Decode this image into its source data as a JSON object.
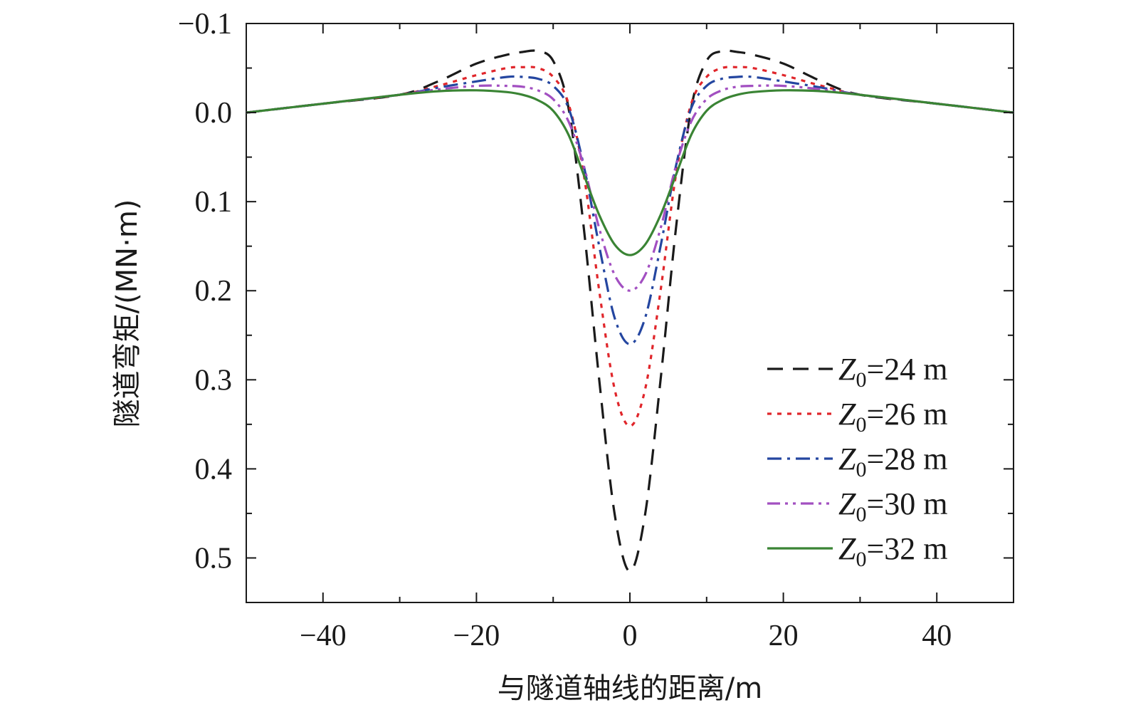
{
  "chart_data": {
    "type": "line",
    "xlabel": "与隧道轴线的距离/m",
    "ylabel": "隧道弯矩/(MN·m)",
    "xlim": [
      -50,
      50
    ],
    "ylim": [
      -0.1,
      0.55
    ],
    "y_inverted": true,
    "grid": false,
    "legend_position": "bottom-right",
    "x_ticks": [
      {
        "value": -40,
        "label": "−40"
      },
      {
        "value": -20,
        "label": "−20"
      },
      {
        "value": 0,
        "label": "0"
      },
      {
        "value": 20,
        "label": "20"
      },
      {
        "value": 40,
        "label": "40"
      }
    ],
    "y_ticks": [
      {
        "value": -0.1,
        "label": "−0.1"
      },
      {
        "value": 0.0,
        "label": "0.0"
      },
      {
        "value": 0.1,
        "label": "0.1"
      },
      {
        "value": 0.2,
        "label": "0.2"
      },
      {
        "value": 0.3,
        "label": "0.3"
      },
      {
        "value": 0.4,
        "label": "0.4"
      },
      {
        "value": 0.5,
        "label": "0.5"
      }
    ],
    "x": [
      -50,
      -40,
      -30,
      -25,
      -20,
      -16,
      -14,
      -12,
      -10,
      -8,
      -6,
      -4,
      -2,
      0,
      2,
      4,
      6,
      8,
      10,
      12,
      14,
      16,
      20,
      25,
      30,
      40,
      50
    ],
    "series": [
      {
        "name": "Z0=24 m",
        "var": "Z",
        "sub": "0",
        "rest": "=24 m",
        "color": "#1a1a1a",
        "dash": "22,14",
        "values": [
          0.0,
          -0.01,
          -0.02,
          -0.035,
          -0.055,
          -0.065,
          -0.068,
          -0.069,
          -0.058,
          -0.005,
          0.13,
          0.3,
          0.45,
          0.515,
          0.45,
          0.3,
          0.13,
          -0.005,
          -0.058,
          -0.069,
          -0.068,
          -0.065,
          -0.055,
          -0.035,
          -0.02,
          -0.01,
          0.0
        ]
      },
      {
        "name": "Z0=26 m",
        "var": "Z",
        "sub": "0",
        "rest": "=26 m",
        "color": "#e0262b",
        "dash": "6,8",
        "values": [
          0.0,
          -0.01,
          -0.02,
          -0.03,
          -0.042,
          -0.05,
          -0.051,
          -0.05,
          -0.04,
          -0.01,
          0.07,
          0.2,
          0.31,
          0.352,
          0.31,
          0.2,
          0.07,
          -0.01,
          -0.04,
          -0.05,
          -0.051,
          -0.05,
          -0.042,
          -0.03,
          -0.02,
          -0.01,
          0.0
        ]
      },
      {
        "name": "Z0=28 m",
        "var": "Z",
        "sub": "0",
        "rest": "=28 m",
        "color": "#2446a0",
        "dash": "20,8,4,8",
        "values": [
          0.0,
          -0.01,
          -0.02,
          -0.028,
          -0.035,
          -0.04,
          -0.04,
          -0.038,
          -0.03,
          -0.005,
          0.06,
          0.15,
          0.23,
          0.26,
          0.23,
          0.15,
          0.06,
          -0.005,
          -0.03,
          -0.038,
          -0.04,
          -0.04,
          -0.035,
          -0.028,
          -0.02,
          -0.01,
          0.0
        ]
      },
      {
        "name": "Z0=30 m",
        "var": "Z",
        "sub": "0",
        "rest": "=30 m",
        "color": "#a24fc1",
        "dash": "18,7,4,7,4,7",
        "values": [
          0.0,
          -0.01,
          -0.02,
          -0.026,
          -0.03,
          -0.03,
          -0.029,
          -0.025,
          -0.015,
          0.01,
          0.06,
          0.13,
          0.182,
          0.2,
          0.182,
          0.13,
          0.06,
          0.01,
          -0.015,
          -0.025,
          -0.029,
          -0.03,
          -0.03,
          -0.026,
          -0.02,
          -0.01,
          0.0
        ]
      },
      {
        "name": "Z0=32 m",
        "var": "Z",
        "sub": "0",
        "rest": "=32 m",
        "color": "#3a8434",
        "dash": "",
        "values": [
          0.0,
          -0.01,
          -0.02,
          -0.024,
          -0.025,
          -0.023,
          -0.02,
          -0.014,
          -0.002,
          0.025,
          0.07,
          0.115,
          0.148,
          0.16,
          0.148,
          0.115,
          0.07,
          0.025,
          -0.002,
          -0.014,
          -0.02,
          -0.023,
          -0.025,
          -0.024,
          -0.02,
          -0.01,
          0.0
        ]
      }
    ]
  }
}
